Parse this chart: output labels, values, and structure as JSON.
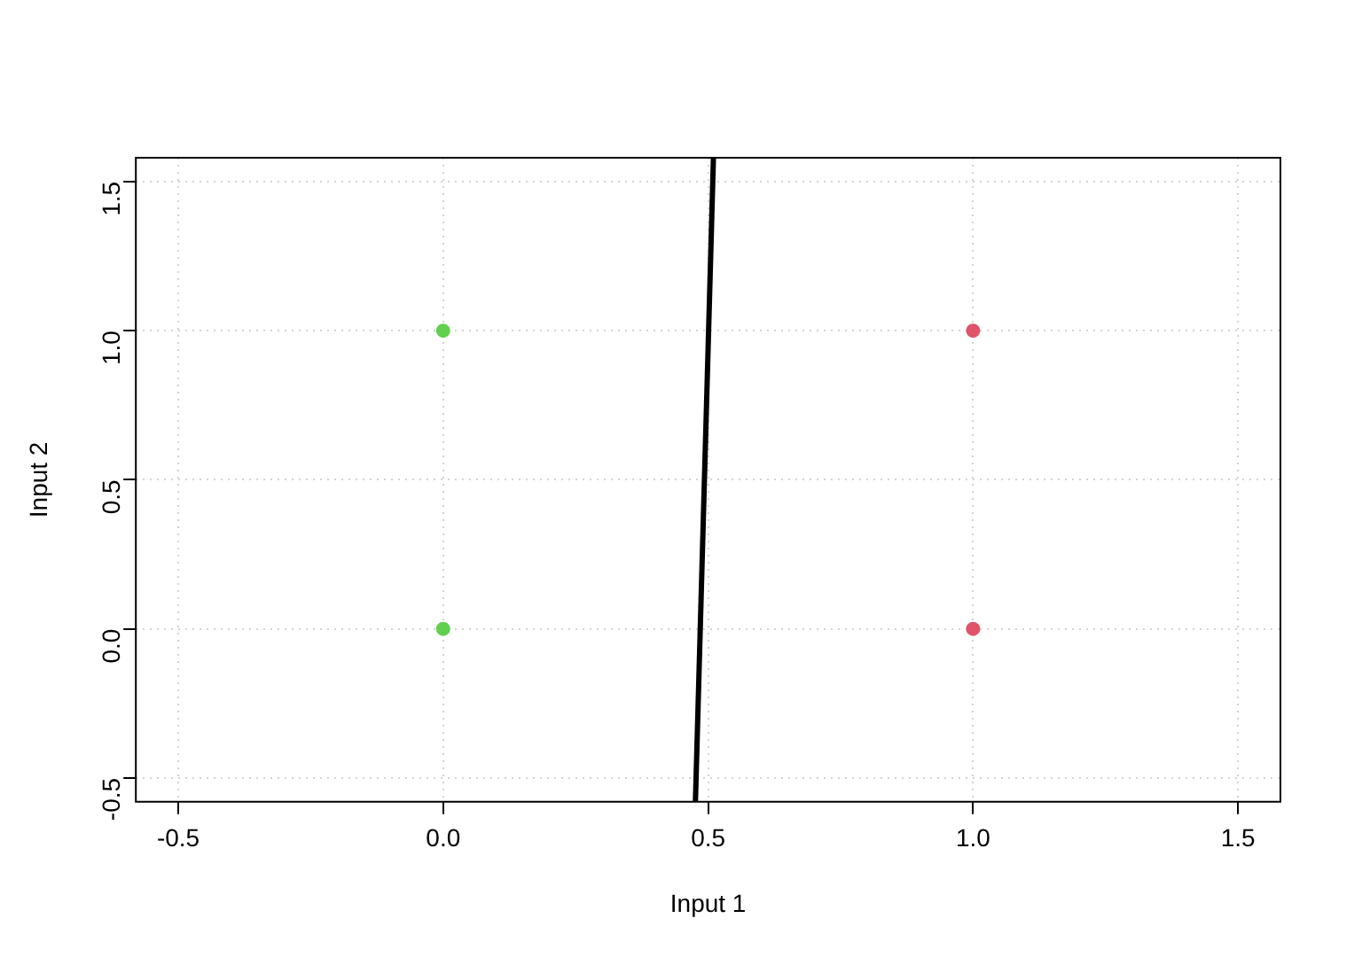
{
  "chart_data": {
    "type": "scatter",
    "xlabel": "Input 1",
    "ylabel": "Input 2",
    "xlim": [
      -0.58,
      1.58
    ],
    "ylim": [
      -0.58,
      1.58
    ],
    "xticks": [
      -0.5,
      {
        "value": 0,
        "label": "0.0"
      },
      0.5,
      {
        "value": 1,
        "label": "1.0"
      },
      1.5
    ],
    "yticks": [
      -0.5,
      {
        "value": 0,
        "label": "0.0"
      },
      0.5,
      {
        "value": 1,
        "label": "1.0"
      },
      1.5
    ],
    "grid": true,
    "marker": "circle",
    "legend": false,
    "series": [
      {
        "type": "scatter",
        "color": "#61d04f",
        "x": [
          0,
          0
        ],
        "values": [
          1,
          0
        ]
      },
      {
        "type": "scatter",
        "color": "#df536b",
        "x": [
          1,
          1
        ],
        "values": [
          1,
          0
        ]
      },
      {
        "type": "line",
        "color": "#000000",
        "x": [
          0.476,
          0.51
        ],
        "values": [
          -0.58,
          1.58
        ],
        "marker": "none"
      }
    ]
  }
}
